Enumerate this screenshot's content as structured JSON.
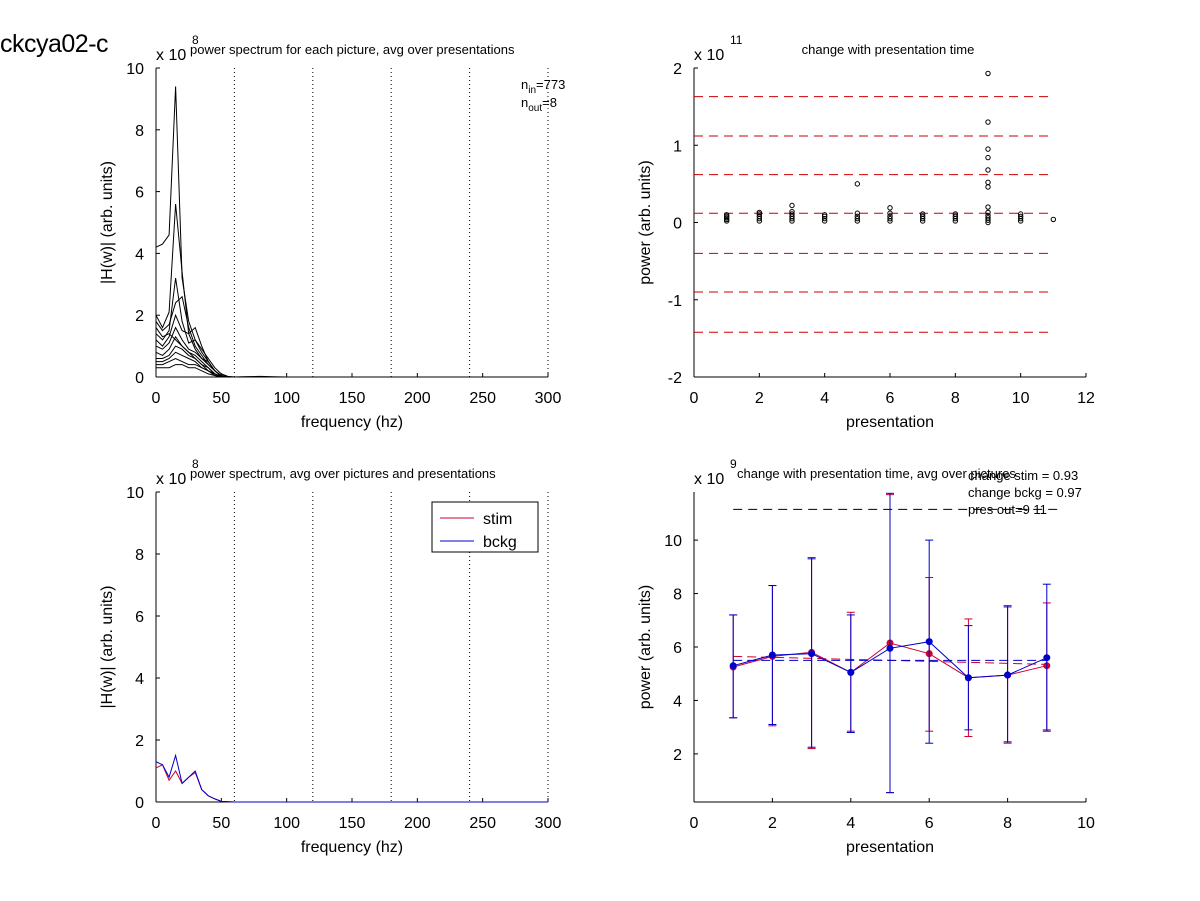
{
  "figure_id": "ckcya02-c",
  "colors": {
    "stim": "#cc0033",
    "bckg": "#0000cc",
    "ref_line": "#cc0000",
    "axis": "#000000"
  },
  "chart_data": [
    {
      "id": "tl",
      "type": "line",
      "title": "power spectrum for each picture, avg over presentations",
      "xlabel": "frequency (hz)",
      "ylabel": "|H(w)| (arb. units)",
      "xlim": [
        0,
        300
      ],
      "ylim": [
        0,
        10
      ],
      "xticks": [
        0,
        50,
        100,
        150,
        200,
        250,
        300
      ],
      "yticks": [
        0,
        2,
        4,
        6,
        8,
        10
      ],
      "exponent_base": "x 10",
      "exponent": "8",
      "vlines": [
        60,
        120,
        180,
        240,
        300
      ],
      "annotation": {
        "n_in_label": "n",
        "n_in_sub": "in",
        "n_in_value": "=773",
        "n_out_label": "n",
        "n_out_sub": "out",
        "n_out_value": "=8"
      },
      "x": [
        0,
        5,
        10,
        15,
        20,
        25,
        30,
        35,
        40,
        45,
        50,
        55,
        60,
        70,
        80,
        90,
        100,
        300
      ],
      "series": [
        {
          "values": [
            4.2,
            4.3,
            4.6,
            9.4,
            3.2,
            1.8,
            1.2,
            0.9,
            0.6,
            0.3,
            0.1,
            0.02,
            0,
            0.01,
            0.02,
            0.01,
            0,
            0
          ]
        },
        {
          "values": [
            2.0,
            1.6,
            2.1,
            5.6,
            3.4,
            1.4,
            0.9,
            0.6,
            0.4,
            0.2,
            0.05,
            0.01,
            0,
            0.01,
            0,
            0,
            0,
            0
          ]
        },
        {
          "values": [
            1.4,
            1.2,
            1.5,
            3.2,
            1.8,
            1.1,
            1.2,
            0.8,
            0.5,
            0.2,
            0.05,
            0,
            0,
            0,
            0,
            0,
            0,
            0
          ]
        },
        {
          "values": [
            1.8,
            1.5,
            1.7,
            2.4,
            2.6,
            1.6,
            1.0,
            0.7,
            0.4,
            0.2,
            0.04,
            0,
            0,
            0,
            0,
            0,
            0,
            0
          ]
        },
        {
          "values": [
            1.2,
            1.0,
            1.3,
            2.0,
            1.5,
            1.4,
            1.6,
            1.0,
            0.5,
            0.2,
            0.03,
            0,
            0,
            0,
            0,
            0,
            0,
            0
          ]
        },
        {
          "values": [
            1.0,
            0.9,
            1.1,
            1.6,
            1.2,
            0.9,
            0.8,
            0.6,
            0.5,
            0.2,
            0.03,
            0,
            0,
            0,
            0,
            0,
            0,
            0
          ]
        },
        {
          "values": [
            0.8,
            0.7,
            0.9,
            1.3,
            1.0,
            0.8,
            0.7,
            0.5,
            0.3,
            0.1,
            0.02,
            0,
            0,
            0,
            0,
            0,
            0,
            0
          ]
        },
        {
          "values": [
            0.6,
            0.6,
            0.7,
            1.0,
            0.9,
            0.7,
            0.6,
            0.4,
            0.3,
            0.1,
            0.02,
            0,
            0,
            0,
            0,
            0,
            0,
            0
          ]
        },
        {
          "values": [
            0.5,
            0.5,
            0.6,
            0.8,
            0.7,
            0.6,
            0.5,
            0.3,
            0.2,
            0.1,
            0.01,
            0,
            0,
            0,
            0,
            0,
            0,
            0
          ]
        },
        {
          "values": [
            1.6,
            1.3,
            1.4,
            1.2,
            1.0,
            0.8,
            0.6,
            0.4,
            0.2,
            0.1,
            0.01,
            0,
            0,
            0,
            0,
            0,
            0,
            0
          ]
        },
        {
          "values": [
            0.4,
            0.4,
            0.5,
            0.6,
            0.5,
            0.4,
            0.4,
            0.3,
            0.2,
            0.05,
            0.01,
            0,
            0,
            0,
            0,
            0,
            0,
            0
          ]
        },
        {
          "values": [
            0.3,
            0.3,
            0.3,
            0.4,
            0.4,
            0.3,
            0.3,
            0.2,
            0.1,
            0.05,
            0.01,
            0,
            0,
            0,
            0,
            0,
            0,
            0
          ]
        }
      ]
    },
    {
      "id": "tr",
      "type": "scatter",
      "title": "change with presentation time",
      "xlabel": "presentation",
      "ylabel": "power (arb. units)",
      "xlim": [
        0,
        12
      ],
      "ylim": [
        -2,
        2
      ],
      "xticks": [
        0,
        2,
        4,
        6,
        8,
        10,
        12
      ],
      "yticks": [
        -2,
        -1,
        0,
        1,
        2
      ],
      "exponent_base": "x 10",
      "exponent": "11",
      "hlines": [
        1.63,
        1.12,
        0.62,
        0.12,
        -0.4,
        -0.9,
        -1.42
      ],
      "hline_range": [
        0,
        11
      ],
      "points": [
        [
          1,
          0.02
        ],
        [
          1,
          0.04
        ],
        [
          1,
          0.06
        ],
        [
          1,
          0.08
        ],
        [
          1,
          0.1
        ],
        [
          2,
          0.02
        ],
        [
          2,
          0.05
        ],
        [
          2,
          0.08
        ],
        [
          2,
          0.11
        ],
        [
          2,
          0.13
        ],
        [
          3,
          0.02
        ],
        [
          3,
          0.05
        ],
        [
          3,
          0.08
        ],
        [
          3,
          0.11
        ],
        [
          3,
          0.14
        ],
        [
          3,
          0.22
        ],
        [
          4,
          0.02
        ],
        [
          4,
          0.05
        ],
        [
          4,
          0.08
        ],
        [
          4,
          0.1
        ],
        [
          5,
          0.02
        ],
        [
          5,
          0.05
        ],
        [
          5,
          0.08
        ],
        [
          5,
          0.12
        ],
        [
          5,
          0.5
        ],
        [
          6,
          0.02
        ],
        [
          6,
          0.05
        ],
        [
          6,
          0.08
        ],
        [
          6,
          0.12
        ],
        [
          6,
          0.19
        ],
        [
          7,
          0.02
        ],
        [
          7,
          0.05
        ],
        [
          7,
          0.08
        ],
        [
          7,
          0.11
        ],
        [
          8,
          0.02
        ],
        [
          8,
          0.05
        ],
        [
          8,
          0.08
        ],
        [
          8,
          0.11
        ],
        [
          9,
          0.0
        ],
        [
          9,
          0.03
        ],
        [
          9,
          0.06
        ],
        [
          9,
          0.09
        ],
        [
          9,
          0.13
        ],
        [
          9,
          0.2
        ],
        [
          9,
          0.46
        ],
        [
          9,
          0.52
        ],
        [
          9,
          0.68
        ],
        [
          9,
          0.84
        ],
        [
          9,
          0.95
        ],
        [
          9,
          1.3
        ],
        [
          9,
          1.93
        ],
        [
          10,
          0.02
        ],
        [
          10,
          0.05
        ],
        [
          10,
          0.08
        ],
        [
          10,
          0.11
        ],
        [
          11,
          0.04
        ]
      ]
    },
    {
      "id": "bl",
      "type": "line",
      "title": "power spectrum, avg over pictures and presentations",
      "xlabel": "frequency (hz)",
      "ylabel": "|H(w)| (arb. units)",
      "xlim": [
        0,
        300
      ],
      "ylim": [
        0,
        10
      ],
      "xticks": [
        0,
        50,
        100,
        150,
        200,
        250,
        300
      ],
      "yticks": [
        0,
        2,
        4,
        6,
        8,
        10
      ],
      "exponent_base": "x 10",
      "exponent": "8",
      "vlines": [
        60,
        120,
        180,
        240,
        300
      ],
      "legend_position": "top-right",
      "x": [
        0,
        5,
        10,
        15,
        20,
        25,
        30,
        35,
        40,
        45,
        50,
        60,
        300
      ],
      "series": [
        {
          "name": "stim",
          "color_key": "stim",
          "values": [
            1.1,
            1.2,
            0.7,
            1.0,
            0.6,
            0.8,
            0.95,
            0.4,
            0.2,
            0.1,
            0.02,
            0,
            0
          ]
        },
        {
          "name": "bckg",
          "color_key": "bckg",
          "values": [
            1.3,
            1.2,
            0.8,
            1.5,
            0.6,
            0.8,
            1.0,
            0.4,
            0.2,
            0.1,
            0.02,
            0,
            0
          ]
        }
      ]
    },
    {
      "id": "br",
      "type": "line",
      "title": "change with presentation time, avg over pictures",
      "xlabel": "presentation",
      "ylabel": "power (arb. units)",
      "xlim": [
        0,
        10
      ],
      "ylim": [
        0.2,
        11.8
      ],
      "xticks": [
        0,
        2,
        4,
        6,
        8,
        10
      ],
      "yticks": [
        2,
        4,
        6,
        8,
        10
      ],
      "exponent_base": "x 10",
      "exponent": "9",
      "annotations": [
        "change stim = 0.93",
        "change bckg = 0.97",
        "pres out=9 11"
      ],
      "hline_black": 11.15,
      "hline_black_range": [
        1,
        9.3
      ],
      "x": [
        1,
        2,
        3,
        4,
        5,
        6,
        7,
        8,
        9
      ],
      "series": [
        {
          "name": "stim",
          "color_key": "stim",
          "values": [
            5.25,
            5.65,
            5.8,
            5.05,
            6.15,
            5.75,
            4.85,
            4.95,
            5.3
          ],
          "err_low": [
            3.35,
            3.05,
            2.2,
            2.85,
            0.55,
            2.85,
            2.65,
            2.4,
            2.9
          ],
          "err_high": [
            7.2,
            8.3,
            9.35,
            7.3,
            11.7,
            8.6,
            7.05,
            7.55,
            7.65
          ],
          "trend": [
            5.65,
            5.35
          ]
        },
        {
          "name": "bckg",
          "color_key": "bckg",
          "values": [
            5.3,
            5.7,
            5.75,
            5.05,
            5.95,
            6.2,
            4.85,
            4.95,
            5.6
          ],
          "err_low": [
            3.35,
            3.1,
            2.25,
            2.8,
            0.55,
            2.4,
            2.9,
            2.45,
            2.85
          ],
          "err_high": [
            7.2,
            8.3,
            9.3,
            7.2,
            11.75,
            10.0,
            6.8,
            7.5,
            8.35
          ],
          "trend": [
            5.5,
            5.5
          ]
        }
      ]
    }
  ]
}
